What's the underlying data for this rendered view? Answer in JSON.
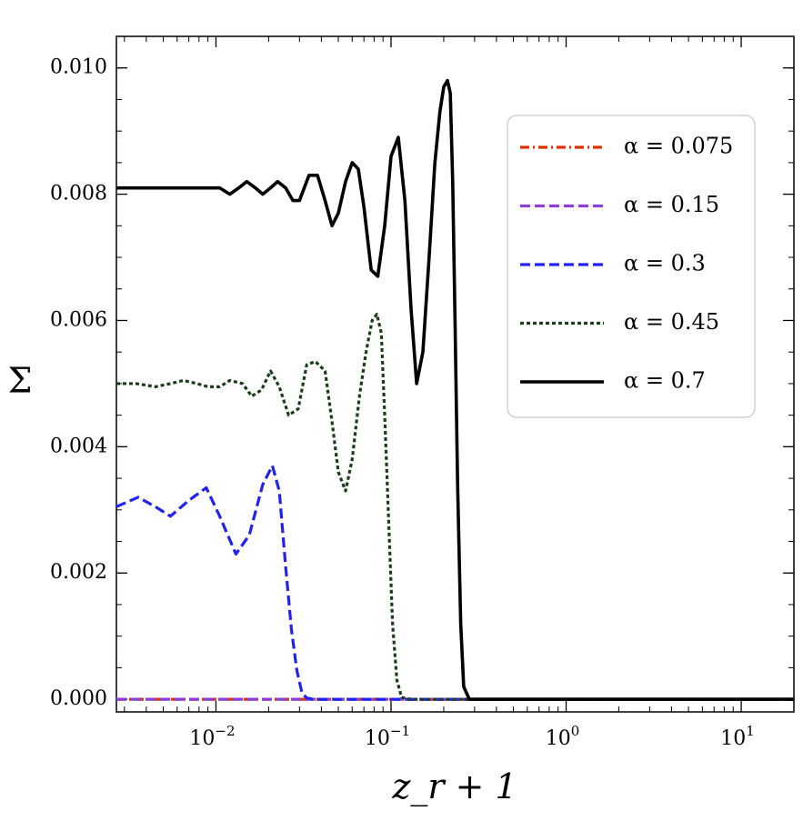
{
  "chart_data": {
    "type": "line",
    "title": "",
    "xlabel": "z_r + 1",
    "ylabel": "Σ",
    "xscale": "log",
    "xlim": [
      0.0027,
      20
    ],
    "ylim": [
      -0.0002,
      0.0105
    ],
    "grid": false,
    "legend_position": "top-right",
    "x_ticks": [
      {
        "value": 0.01,
        "label": "10",
        "exp": "−2"
      },
      {
        "value": 0.1,
        "label": "10",
        "exp": "−1"
      },
      {
        "value": 1,
        "label": "10",
        "exp": "0"
      },
      {
        "value": 10,
        "label": "10",
        "exp": "1"
      }
    ],
    "y_ticks": [
      {
        "value": 0.0,
        "label": "0.000"
      },
      {
        "value": 0.002,
        "label": "0.002"
      },
      {
        "value": 0.004,
        "label": "0.004"
      },
      {
        "value": 0.006,
        "label": "0.006"
      },
      {
        "value": 0.008,
        "label": "0.008"
      },
      {
        "value": 0.01,
        "label": "0.010"
      }
    ],
    "series": [
      {
        "name": "α = 0.075",
        "color": "#dd3300",
        "dash": "dashdot",
        "x": [
          0.0027,
          0.01,
          0.1,
          1,
          10,
          20
        ],
        "y": [
          0,
          0,
          0,
          0,
          0,
          0
        ]
      },
      {
        "name": "α = 0.15",
        "color": "#8a3fd9",
        "dash": "dashed",
        "x": [
          0.0027,
          0.01,
          0.1,
          1,
          10,
          20
        ],
        "y": [
          0,
          0,
          0,
          0,
          0,
          0
        ]
      },
      {
        "name": "α = 0.3",
        "color": "#2222ee",
        "dash": "dashed",
        "x": [
          0.0027,
          0.0036,
          0.0045,
          0.0055,
          0.007,
          0.0088,
          0.0105,
          0.013,
          0.0155,
          0.0185,
          0.021,
          0.023,
          0.025,
          0.027,
          0.029,
          0.031,
          0.033,
          0.036,
          0.04,
          0.1,
          1,
          20
        ],
        "y": [
          0.00305,
          0.0032,
          0.00305,
          0.0029,
          0.00315,
          0.00335,
          0.0029,
          0.0023,
          0.0026,
          0.0034,
          0.0037,
          0.0033,
          0.0021,
          0.0011,
          0.00045,
          0.0001,
          2e-05,
          0,
          0,
          0,
          0,
          0
        ]
      },
      {
        "name": "α = 0.45",
        "color": "#1b3d1b",
        "dash": "dotted",
        "x": [
          0.0027,
          0.0035,
          0.0045,
          0.0055,
          0.0065,
          0.0078,
          0.009,
          0.0105,
          0.012,
          0.0142,
          0.016,
          0.0182,
          0.0205,
          0.023,
          0.026,
          0.0295,
          0.033,
          0.037,
          0.042,
          0.046,
          0.05,
          0.055,
          0.06,
          0.066,
          0.072,
          0.078,
          0.083,
          0.088,
          0.092,
          0.097,
          0.102,
          0.108,
          0.115,
          0.13,
          1,
          20
        ],
        "y": [
          0.005,
          0.005,
          0.00495,
          0.005,
          0.00505,
          0.005,
          0.00495,
          0.00495,
          0.00505,
          0.005,
          0.0048,
          0.0049,
          0.0052,
          0.00495,
          0.0045,
          0.0046,
          0.0053,
          0.00535,
          0.0052,
          0.0044,
          0.0036,
          0.0033,
          0.0038,
          0.0048,
          0.0055,
          0.006,
          0.0061,
          0.0058,
          0.0045,
          0.0028,
          0.0012,
          0.0003,
          3e-05,
          0,
          0,
          0
        ]
      },
      {
        "name": "α = 0.7",
        "color": "#000000",
        "dash": "solid",
        "x": [
          0.0027,
          0.0035,
          0.0045,
          0.0055,
          0.0065,
          0.0078,
          0.009,
          0.0105,
          0.012,
          0.0135,
          0.015,
          0.0168,
          0.0185,
          0.0205,
          0.0225,
          0.025,
          0.0275,
          0.03,
          0.034,
          0.038,
          0.042,
          0.046,
          0.05,
          0.055,
          0.06,
          0.065,
          0.07,
          0.077,
          0.084,
          0.092,
          0.1,
          0.11,
          0.12,
          0.13,
          0.14,
          0.152,
          0.165,
          0.178,
          0.19,
          0.2,
          0.21,
          0.218,
          0.225,
          0.232,
          0.24,
          0.25,
          0.26,
          0.28,
          1,
          20
        ],
        "y": [
          0.0081,
          0.0081,
          0.0081,
          0.0081,
          0.0081,
          0.0081,
          0.0081,
          0.0081,
          0.008,
          0.0081,
          0.0082,
          0.0081,
          0.008,
          0.0081,
          0.0082,
          0.0081,
          0.0079,
          0.0079,
          0.0083,
          0.0083,
          0.0079,
          0.0075,
          0.0077,
          0.0082,
          0.0085,
          0.0084,
          0.0078,
          0.0068,
          0.0067,
          0.0075,
          0.0086,
          0.0089,
          0.0079,
          0.0062,
          0.005,
          0.0055,
          0.007,
          0.0085,
          0.0093,
          0.0097,
          0.0098,
          0.0096,
          0.0082,
          0.006,
          0.0034,
          0.0012,
          0.0002,
          0,
          0,
          0
        ]
      }
    ]
  }
}
